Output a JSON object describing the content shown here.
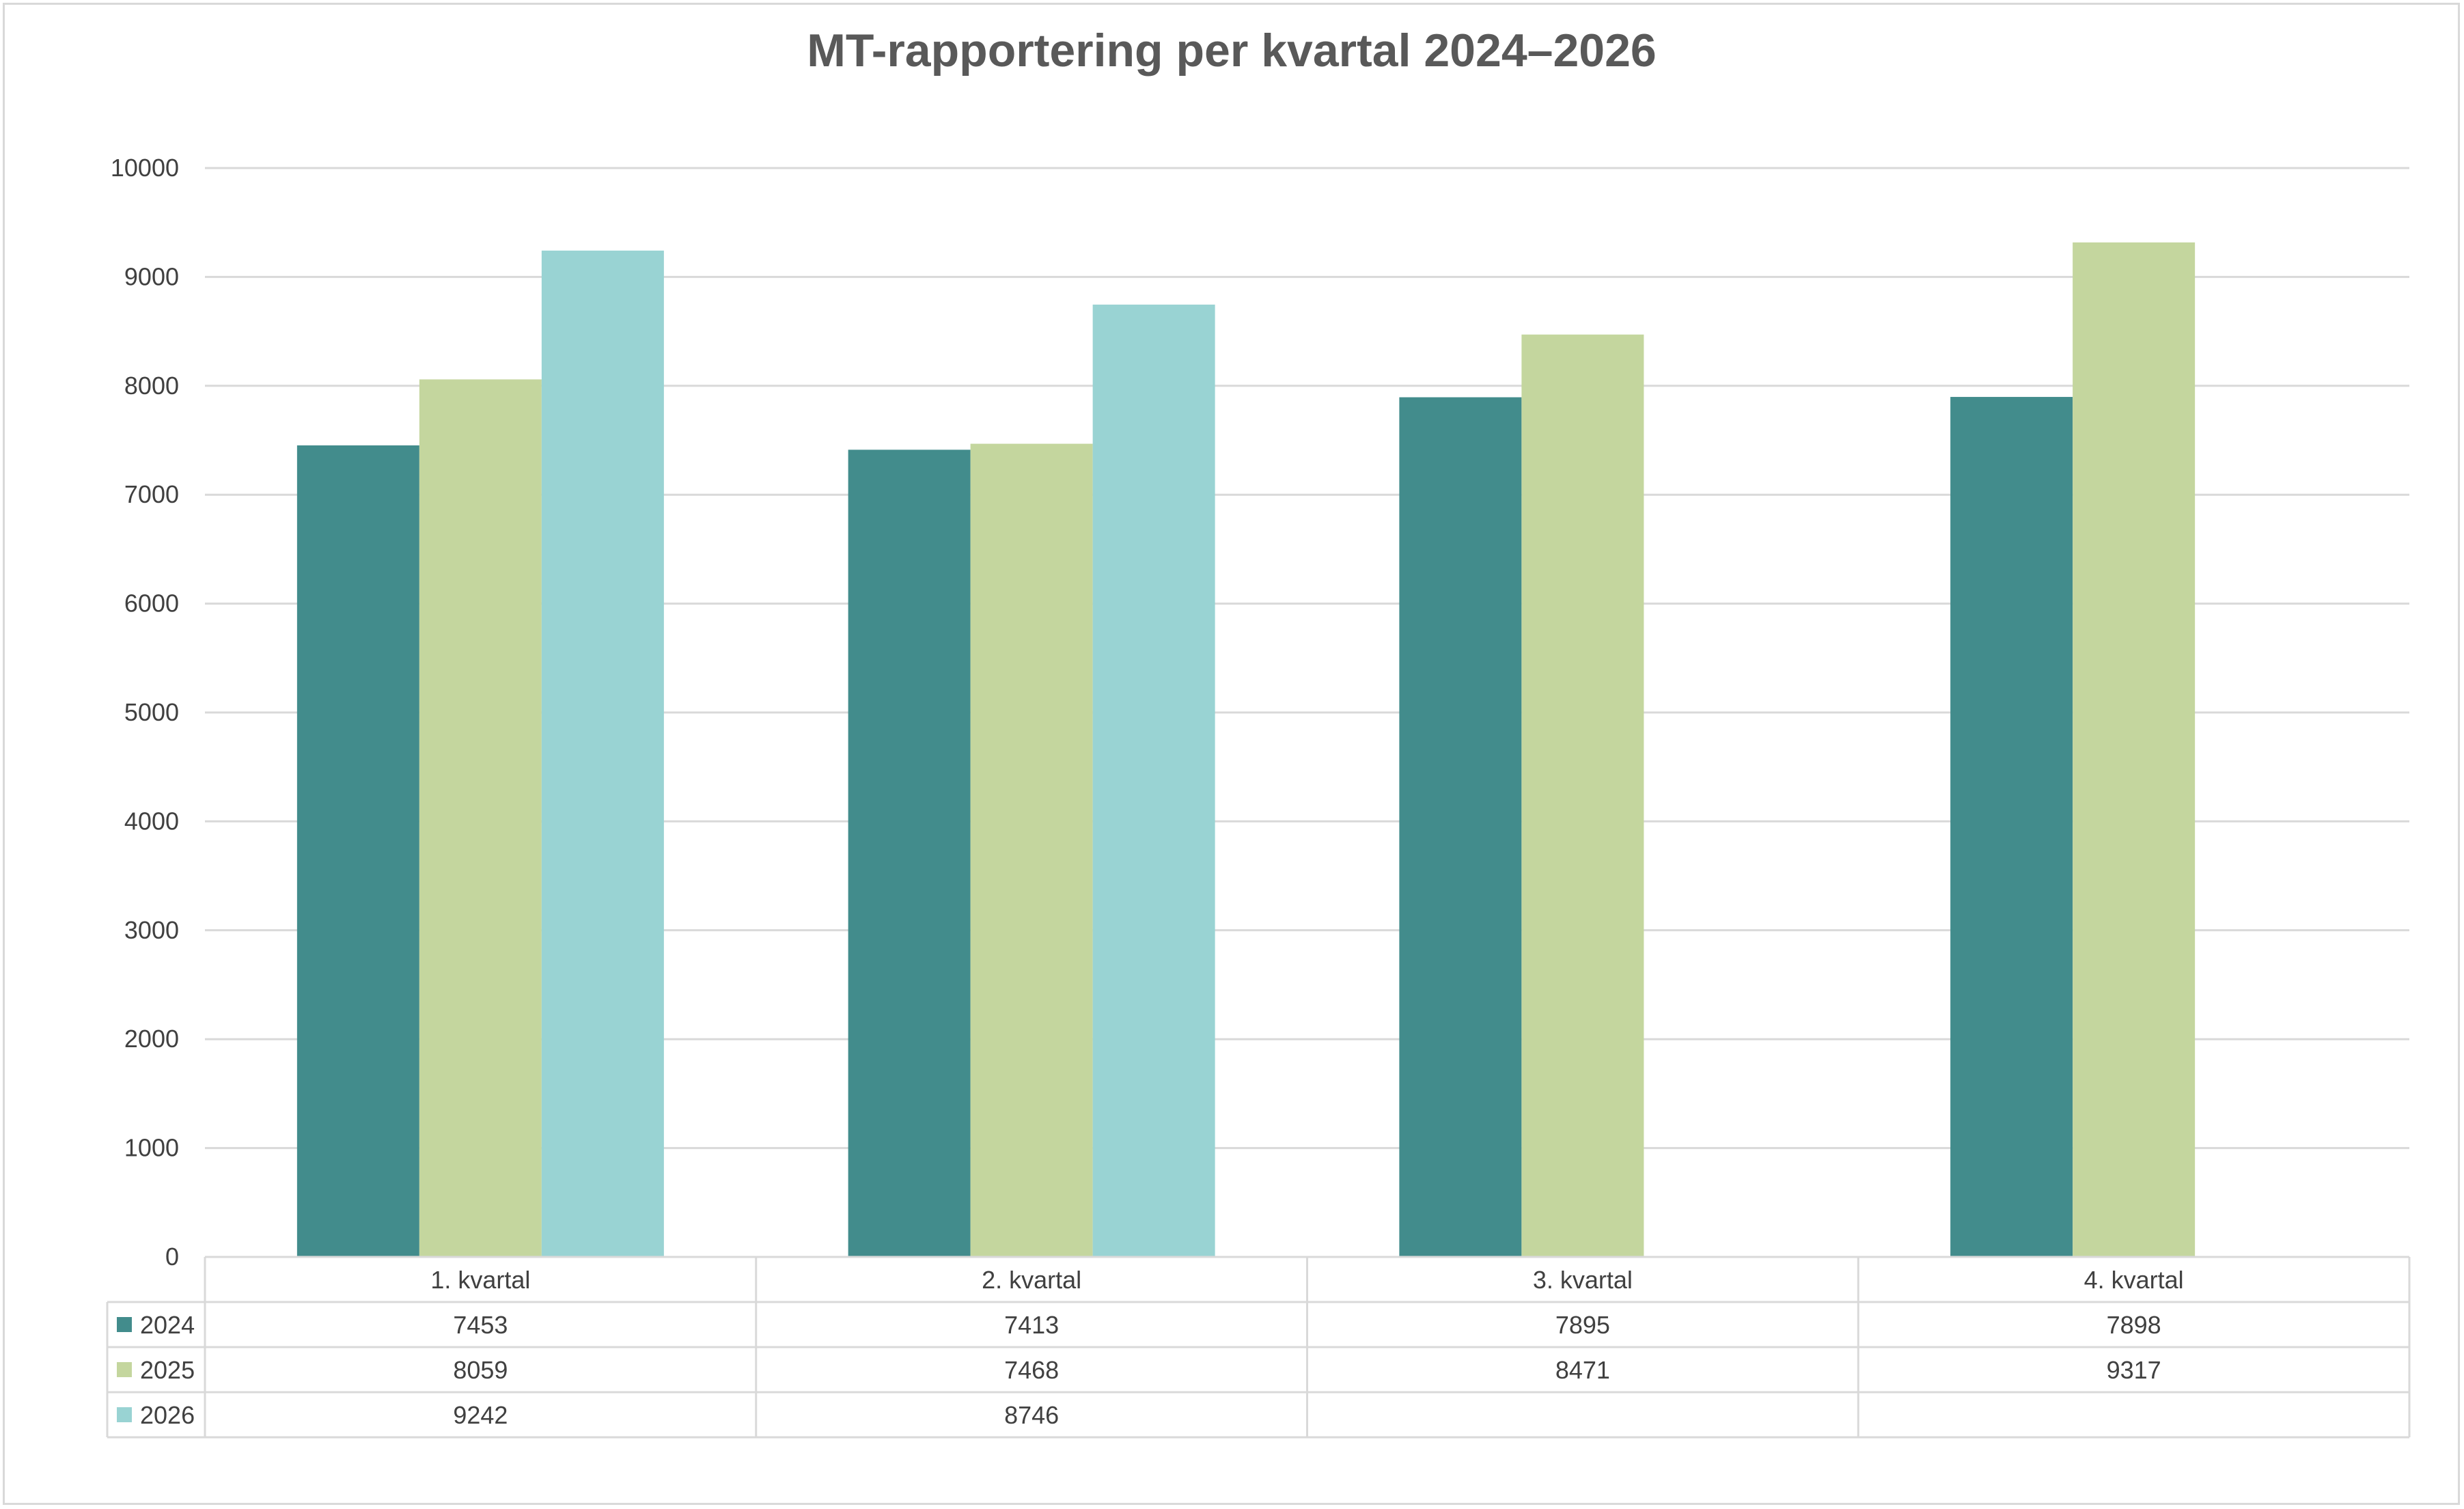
{
  "chart_data": {
    "type": "bar",
    "title": "MT-rapportering per kvartal 2024–2026",
    "categories": [
      "1. kvartal",
      "2. kvartal",
      "3. kvartal",
      "4. kvartal"
    ],
    "series": [
      {
        "name": "2024",
        "color": "#428c8c",
        "values": [
          7453,
          7413,
          7895,
          7898
        ]
      },
      {
        "name": "2025",
        "color": "#c4d69e",
        "values": [
          8059,
          7468,
          8471,
          9317
        ]
      },
      {
        "name": "2026",
        "color": "#99d3d3",
        "values": [
          9242,
          8746,
          null,
          null
        ]
      }
    ],
    "ylim": [
      0,
      10000
    ],
    "yticks": [
      0,
      1000,
      2000,
      3000,
      4000,
      5000,
      6000,
      7000,
      8000,
      9000,
      10000
    ],
    "grid": true,
    "legend": "data-table-below",
    "data_table": true
  }
}
